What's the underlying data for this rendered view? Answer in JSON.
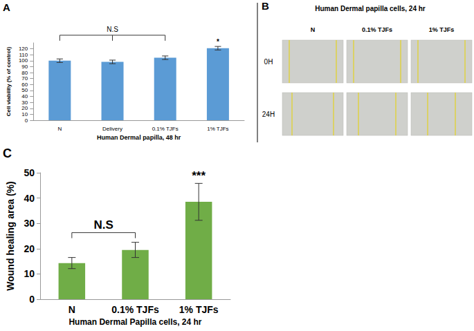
{
  "chart_data": [
    {
      "panel": "A",
      "type": "bar",
      "categories": [
        "N",
        "Delivery",
        "0.1% TJFs",
        "1% TJFs"
      ],
      "values": [
        100,
        98,
        105,
        121
      ],
      "errors": [
        3,
        3,
        3,
        3
      ],
      "color": "#5b9bd5",
      "xlabel": "Human Dermal papilla, 48 hr",
      "ylabel": "Cell viability (% of control)",
      "ylim": [
        0,
        130
      ],
      "yticks": [
        0,
        10,
        20,
        30,
        40,
        50,
        60,
        70,
        80,
        90,
        100,
        110,
        120
      ],
      "grid": false,
      "annotations": [
        {
          "text": "N.S",
          "from": "N",
          "to": "0.1% TJFs"
        },
        {
          "text": "*",
          "at": "1% TJFs"
        }
      ]
    },
    {
      "panel": "C",
      "type": "bar",
      "categories": [
        "N",
        "0.1% TJFs",
        "1% TJFs"
      ],
      "values": [
        14.3,
        19.5,
        38.5
      ],
      "errors": [
        2.2,
        3.0,
        7.3
      ],
      "color": "#70ad47",
      "xlabel": "Human Dermal Papilla cells, 24 hr",
      "ylabel": "Wound healing area (%)",
      "ylim": [
        0,
        50
      ],
      "yticks": [
        0,
        10,
        20,
        30,
        40,
        50
      ],
      "grid": false,
      "annotations": [
        {
          "text": "N.S",
          "from": "N",
          "to": "0.1% TJFs"
        },
        {
          "text": "***",
          "at": "1% TJFs"
        }
      ]
    }
  ],
  "image_panel": {
    "panel": "B",
    "title": "Human Dermal papilla cells, 24 hr",
    "columns": [
      "N",
      "0.1% TJFs",
      "1% TJFs"
    ],
    "rows": [
      "0H",
      "24H"
    ]
  }
}
